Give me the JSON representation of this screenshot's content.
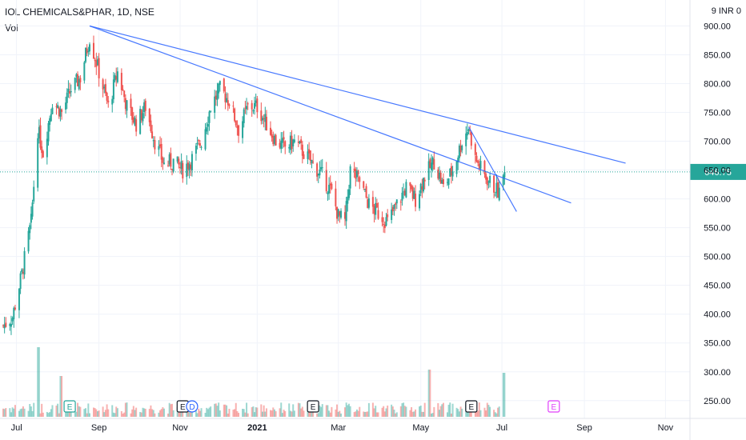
{
  "header": {
    "symbol": "IOL CHEMICALS&PHAR, 1D, NSE",
    "volume_label": "Vol",
    "currency": "9 INR 0"
  },
  "colors": {
    "up": "#26a69a",
    "down": "#ef5350",
    "trend": "#2962ff",
    "last_price_bg": "#26a69a",
    "grid": "#f0f3fa"
  },
  "chart_data": {
    "type": "candlestick",
    "x_ticks": [
      "Jul",
      "Sep",
      "Nov",
      "2021",
      "Mar",
      "May",
      "Jul",
      "Sep",
      "Nov"
    ],
    "y_ticks": [
      "900.00",
      "850.00",
      "800.00",
      "750.00",
      "700.00",
      "650.00",
      "600.00",
      "550.00",
      "500.00",
      "450.00",
      "400.00",
      "350.00",
      "300.00",
      "250.00"
    ],
    "ylim": [
      240,
      920
    ],
    "last_price": "646.75",
    "price_path": [
      [
        "2020-06-24",
        380
      ],
      [
        "2020-07-01",
        395
      ],
      [
        "2020-07-08",
        470
      ],
      [
        "2020-07-15",
        560
      ],
      [
        "2020-07-20",
        720
      ],
      [
        "2020-07-24",
        680
      ],
      [
        "2020-07-31",
        770
      ],
      [
        "2020-08-07",
        750
      ],
      [
        "2020-08-14",
        790
      ],
      [
        "2020-08-21",
        810
      ],
      [
        "2020-08-28",
        880
      ],
      [
        "2020-09-04",
        820
      ],
      [
        "2020-09-11",
        760
      ],
      [
        "2020-09-18",
        820
      ],
      [
        "2020-09-25",
        760
      ],
      [
        "2020-10-02",
        730
      ],
      [
        "2020-10-09",
        760
      ],
      [
        "2020-10-16",
        700
      ],
      [
        "2020-10-23",
        660
      ],
      [
        "2020-10-30",
        665
      ],
      [
        "2020-11-06",
        650
      ],
      [
        "2020-11-13",
        670
      ],
      [
        "2020-11-20",
        700
      ],
      [
        "2020-11-27",
        760
      ],
      [
        "2020-12-04",
        790
      ],
      [
        "2020-12-11",
        770
      ],
      [
        "2020-12-18",
        720
      ],
      [
        "2020-12-25",
        760
      ],
      [
        "2021-01-01",
        760
      ],
      [
        "2021-01-08",
        730
      ],
      [
        "2021-01-15",
        700
      ],
      [
        "2021-01-22",
        690
      ],
      [
        "2021-01-29",
        700
      ],
      [
        "2021-02-05",
        680
      ],
      [
        "2021-02-12",
        660
      ],
      [
        "2021-02-19",
        640
      ],
      [
        "2021-02-26",
        610
      ],
      [
        "2021-03-03",
        570
      ],
      [
        "2021-03-08",
        560
      ],
      [
        "2021-03-12",
        650
      ],
      [
        "2021-03-19",
        630
      ],
      [
        "2021-03-26",
        590
      ],
      [
        "2021-04-02",
        575
      ],
      [
        "2021-04-09",
        560
      ],
      [
        "2021-04-16",
        590
      ],
      [
        "2021-04-23",
        620
      ],
      [
        "2021-04-30",
        600
      ],
      [
        "2021-05-07",
        640
      ],
      [
        "2021-05-14",
        665
      ],
      [
        "2021-05-21",
        620
      ],
      [
        "2021-05-28",
        650
      ],
      [
        "2021-06-04",
        700
      ],
      [
        "2021-06-09",
        725
      ],
      [
        "2021-06-14",
        670
      ],
      [
        "2021-06-21",
        640
      ],
      [
        "2021-06-28",
        620
      ],
      [
        "2021-07-02",
        610
      ],
      [
        "2021-07-06",
        646.75
      ]
    ],
    "volume_spikes": [
      [
        "2020-07-20",
        0.9
      ],
      [
        "2020-08-07",
        0.45
      ],
      [
        "2021-05-10",
        0.55
      ],
      [
        "2021-07-06",
        0.5
      ]
    ],
    "trendlines": [
      {
        "from": [
          "2020-08-28",
          900
        ],
        "to": [
          "2021-10-05",
          662
        ]
      },
      {
        "from": [
          "2020-08-28",
          900
        ],
        "to": [
          "2021-08-25",
          593
        ]
      },
      {
        "from": [
          "2021-06-09",
          725
        ],
        "to": [
          "2021-07-15",
          578
        ]
      }
    ],
    "events": [
      {
        "label": "E",
        "date": "2020-08-13",
        "color": "#26a69a"
      },
      {
        "label": "E",
        "date": "2020-11-06",
        "color": "#131722"
      },
      {
        "label": "D",
        "date": "2020-11-13",
        "color": "#2962ff"
      },
      {
        "label": "E",
        "date": "2021-02-12",
        "color": "#131722"
      },
      {
        "label": "E",
        "date": "2021-06-11",
        "color": "#131722"
      },
      {
        "label": "E",
        "date": "2021-08-12",
        "color": "#e040fb"
      }
    ]
  }
}
